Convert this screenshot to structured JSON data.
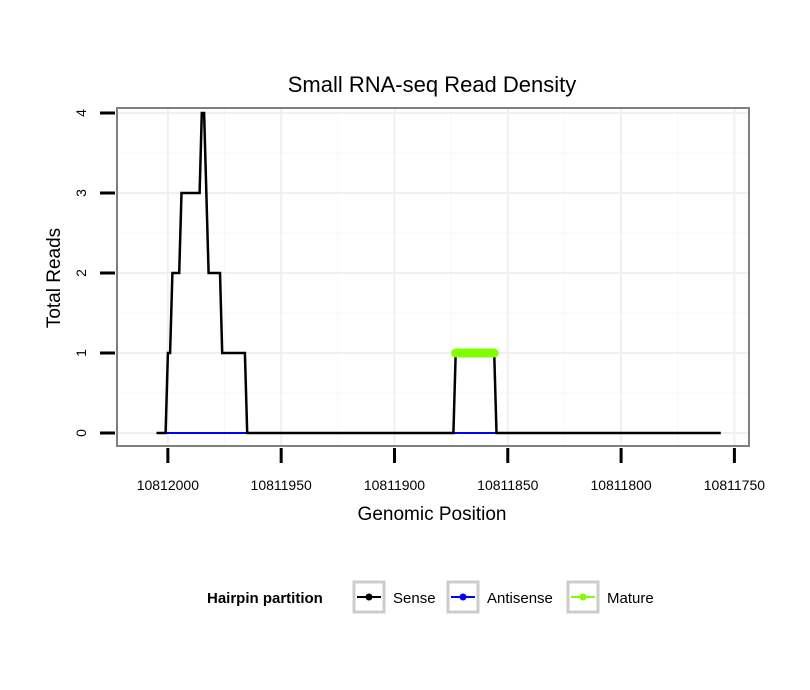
{
  "chart_data": {
    "type": "line",
    "title": "Small RNA-seq Read Density",
    "xlabel": "Genomic Position",
    "ylabel": "Total Reads",
    "xlim": [
      10812022,
      10811744
    ],
    "x_reversed": true,
    "ylim": [
      -0.15,
      4.05
    ],
    "x_ticks": [
      10812000,
      10811950,
      10811900,
      10811850,
      10811800,
      10811750
    ],
    "x_tick_labels": [
      "10812000",
      "10811950",
      "10811900",
      "10811850",
      "10811800",
      "10811750"
    ],
    "y_ticks": [
      0,
      1,
      2,
      3,
      4
    ],
    "y_tick_labels": [
      "0",
      "1",
      "2",
      "3",
      "4"
    ],
    "grid": true,
    "legend_position": "bottom",
    "legend_title": "Hairpin partition",
    "series": [
      {
        "name": "Sense",
        "color": "#000000",
        "points": [
          [
            10812005,
            0
          ],
          [
            10812001,
            0
          ],
          [
            10812000,
            1
          ],
          [
            10811999,
            1
          ],
          [
            10811998,
            2
          ],
          [
            10811995,
            2
          ],
          [
            10811994,
            3
          ],
          [
            10811986,
            3
          ],
          [
            10811985,
            4
          ],
          [
            10811984,
            4
          ],
          [
            10811982,
            2
          ],
          [
            10811977,
            2
          ],
          [
            10811976,
            1
          ],
          [
            10811966,
            1
          ],
          [
            10811965,
            0
          ],
          [
            10811874,
            0
          ],
          [
            10811873,
            1
          ],
          [
            10811856,
            1
          ],
          [
            10811855,
            0
          ],
          [
            10811756,
            0
          ]
        ]
      },
      {
        "name": "Antisense",
        "color": "#0000ff",
        "points": [
          [
            10812001,
            0
          ],
          [
            10811965,
            0
          ],
          [
            10811873,
            0
          ],
          [
            10811855,
            0
          ]
        ]
      },
      {
        "name": "Mature",
        "color": "#7fff00",
        "points": [
          [
            10811873,
            1
          ],
          [
            10811856,
            1
          ]
        ]
      }
    ]
  }
}
